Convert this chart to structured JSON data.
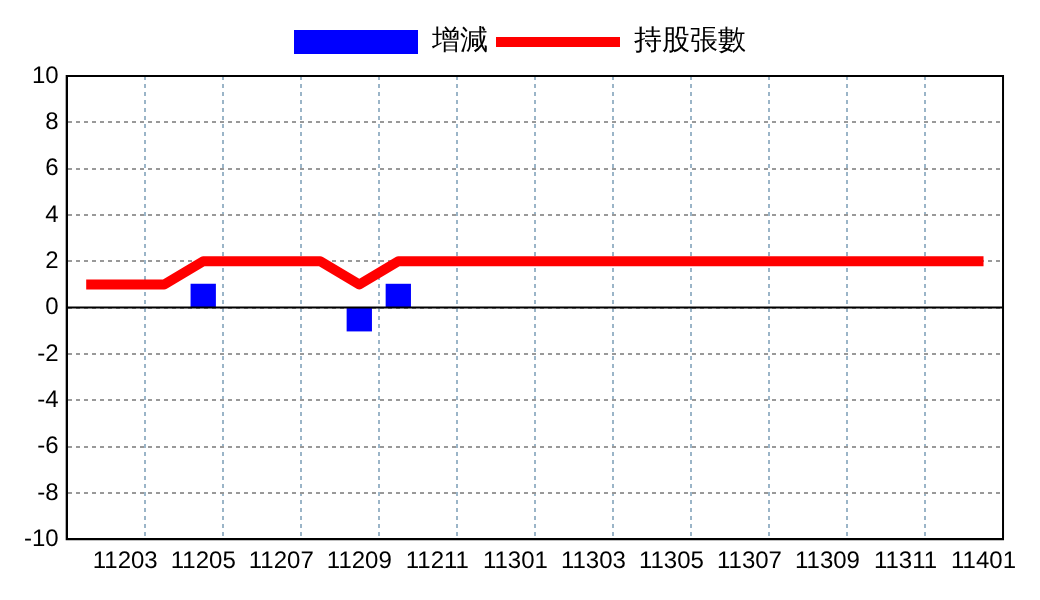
{
  "chart_data": {
    "type": "bar",
    "categories": [
      null,
      "11203",
      null,
      "11205",
      null,
      "11207",
      null,
      "11209",
      null,
      "11211",
      null,
      "11301",
      null,
      "11303",
      null,
      "11305",
      null,
      "11307",
      null,
      "11309",
      null,
      "11311",
      null,
      "11401"
    ],
    "series": [
      {
        "name": "增減",
        "color": "#0000ff",
        "values": [
          null,
          null,
          null,
          1,
          null,
          null,
          null,
          -1,
          1,
          null,
          null,
          null,
          null,
          null,
          null,
          null,
          null,
          null,
          null,
          null,
          null,
          null,
          null,
          null
        ]
      },
      {
        "name": "持股張數",
        "type": "line",
        "color": "#ff0000",
        "values": [
          1,
          1,
          1,
          2,
          2,
          2,
          2,
          1,
          2,
          2,
          2,
          2,
          2,
          2,
          2,
          2,
          2,
          2,
          2,
          2,
          2,
          2,
          2,
          2
        ]
      }
    ],
    "ylim": [
      -10,
      10
    ],
    "yticks": [
      -10,
      -8,
      -6,
      -4,
      -2,
      0,
      2,
      4,
      6,
      8,
      10
    ],
    "grid": true,
    "legend": "top",
    "marker": "none"
  }
}
